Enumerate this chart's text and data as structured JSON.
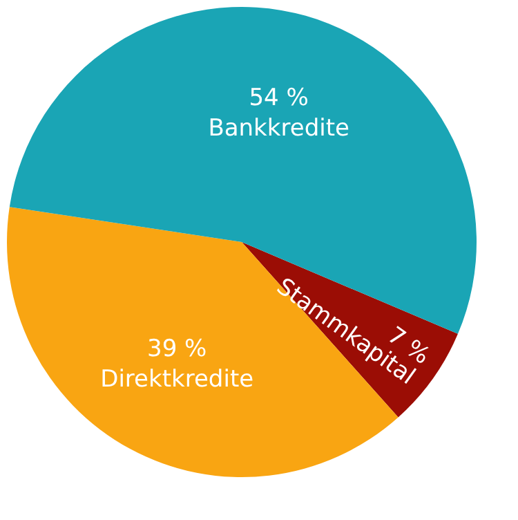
{
  "chart_data": {
    "type": "pie",
    "categories": [
      "Stammkapital",
      "Direktkredite",
      "Bankkredite"
    ],
    "values": [
      7,
      39,
      54
    ],
    "colors": [
      "#9b0d05",
      "#f9a512",
      "#1aa5b5"
    ],
    "value_labels": [
      "7 %",
      "39 %",
      "54 %"
    ]
  }
}
